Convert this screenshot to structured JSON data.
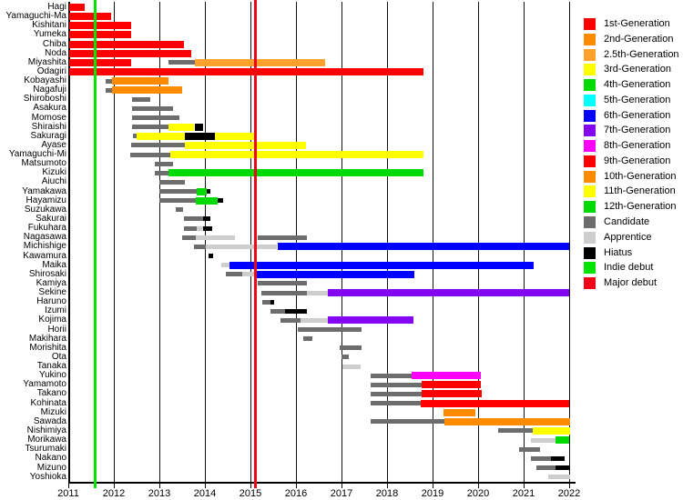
{
  "chart_data": {
    "type": "bar",
    "variant": "horizontal-timeline-gantt",
    "title": "",
    "x_axis": {
      "ticks": [
        2011,
        2012,
        2013,
        2014,
        2015,
        2016,
        2017,
        2018,
        2019,
        2020,
        2021,
        2022
      ],
      "range": [
        2011,
        2022.1
      ],
      "grid": true
    },
    "events": [
      {
        "name": "Indie debut",
        "year": 2011.59,
        "color": "indie"
      },
      {
        "name": "Major debut",
        "year": 2015.11,
        "color": "major"
      }
    ],
    "colors": {
      "1st": "#fc0000",
      "2nd": "#ff8b00",
      "2.5th": "#ffa12b",
      "3rd": "#ffff00",
      "4th": "#00da00",
      "5th": "#00ffff",
      "6th": "#0000ff",
      "7th": "#8405f0",
      "8th": "#ff00ff",
      "9th": "#fc0000",
      "10th": "#ff8b00",
      "11th": "#ffff00",
      "12th": "#00da00",
      "candidate": "#6d6d6d",
      "apprentice": "#cecece",
      "hiatus": "#000000",
      "indie": "#00e400",
      "major": "#f00418"
    },
    "legend": [
      {
        "label": "1st-Generation",
        "color": "1st"
      },
      {
        "label": "2nd-Generation",
        "color": "2nd"
      },
      {
        "label": "2.5th-Generation",
        "color": "2.5th"
      },
      {
        "label": "3rd-Generation",
        "color": "3rd"
      },
      {
        "label": "4th-Generation",
        "color": "4th"
      },
      {
        "label": "5th-Generation",
        "color": "5th"
      },
      {
        "label": "6th-Generation",
        "color": "6th"
      },
      {
        "label": "7th-Generation",
        "color": "7th"
      },
      {
        "label": "8th-Generation",
        "color": "8th"
      },
      {
        "label": "9th-Generation",
        "color": "9th"
      },
      {
        "label": "10th-Generation",
        "color": "10th"
      },
      {
        "label": "11th-Generation",
        "color": "11th"
      },
      {
        "label": "12th-Generation",
        "color": "12th"
      },
      {
        "label": "Candidate",
        "color": "candidate"
      },
      {
        "label": "Apprentice",
        "color": "apprentice"
      },
      {
        "label": "Hiatus",
        "color": "hiatus"
      },
      {
        "label": "Indie debut",
        "color": "indie"
      },
      {
        "label": "Major debut",
        "color": "major"
      }
    ],
    "members": [
      {
        "name": "Hagi",
        "segments": [
          [
            "1st",
            2011.02,
            2011.37
          ]
        ]
      },
      {
        "name": "Yamaguchi-Ma",
        "segments": [
          [
            "1st",
            2011.02,
            2011.93
          ]
        ]
      },
      {
        "name": "Kishitani",
        "segments": [
          [
            "1st",
            2011.02,
            2012.38
          ]
        ]
      },
      {
        "name": "Yumeka",
        "segments": [
          [
            "1st",
            2011.02,
            2012.38
          ]
        ]
      },
      {
        "name": "Chiba",
        "segments": [
          [
            "1st",
            2011.02,
            2013.55
          ]
        ]
      },
      {
        "name": "Noda",
        "segments": [
          [
            "1st",
            2011.02,
            2013.7
          ]
        ]
      },
      {
        "name": "Miyashita",
        "segments": [
          [
            "1st",
            2011.02,
            2012.38
          ],
          [
            "candidate",
            2013.2,
            2013.78
          ],
          [
            "2.5th",
            2013.78,
            2016.64
          ]
        ]
      },
      {
        "name": "Odagiri",
        "segments": [
          [
            "1st",
            2011.02,
            2018.8
          ]
        ]
      },
      {
        "name": "Kobayashi",
        "segments": [
          [
            "candidate",
            2011.82,
            2011.96
          ],
          [
            "2nd",
            2011.96,
            2013.2
          ]
        ]
      },
      {
        "name": "Nagafuji",
        "segments": [
          [
            "candidate",
            2011.82,
            2011.96
          ],
          [
            "2nd",
            2011.96,
            2013.5
          ]
        ]
      },
      {
        "name": "Shiroboshi",
        "segments": [
          [
            "candidate",
            2012.4,
            2012.8
          ]
        ]
      },
      {
        "name": "Asakura",
        "segments": [
          [
            "candidate",
            2012.4,
            2013.3
          ]
        ]
      },
      {
        "name": "Momose",
        "segments": [
          [
            "candidate",
            2012.4,
            2013.44
          ]
        ]
      },
      {
        "name": "Shiraishi",
        "segments": [
          [
            "candidate",
            2012.4,
            2013.2
          ],
          [
            "3rd",
            2013.2,
            2013.76
          ],
          [
            "hiatus",
            2013.79,
            2013.95,
            "thick"
          ]
        ]
      },
      {
        "name": "Sakuragi",
        "segments": [
          [
            "candidate",
            2012.42,
            2012.5
          ],
          [
            "3rd",
            2012.5,
            2013.56
          ],
          [
            "hiatus",
            2013.56,
            2014.22,
            "thick"
          ],
          [
            "3rd",
            2014.22,
            2015.1
          ]
        ]
      },
      {
        "name": "Ayase",
        "segments": [
          [
            "candidate",
            2012.38,
            2013.56
          ],
          [
            "3rd",
            2013.56,
            2016.22
          ]
        ]
      },
      {
        "name": "Yamaguchi-Mi",
        "segments": [
          [
            "candidate",
            2012.36,
            2013.24
          ],
          [
            "3rd",
            2013.24,
            2018.8
          ]
        ]
      },
      {
        "name": "Matsumoto",
        "segments": [
          [
            "candidate",
            2012.9,
            2013.3
          ]
        ]
      },
      {
        "name": "Kizuki",
        "segments": [
          [
            "candidate",
            2012.9,
            2013.2
          ],
          [
            "4th",
            2013.2,
            2018.8
          ]
        ]
      },
      {
        "name": "Aiuchi",
        "segments": [
          [
            "candidate",
            2013.0,
            2013.56
          ]
        ]
      },
      {
        "name": "Yamakawa",
        "segments": [
          [
            "candidate",
            2013.0,
            2013.82
          ],
          [
            "4th",
            2013.82,
            2014.04
          ],
          [
            "hiatus",
            2014.04,
            2014.12
          ]
        ]
      },
      {
        "name": "Hayamizu",
        "segments": [
          [
            "candidate",
            2013.0,
            2013.8
          ],
          [
            "4th",
            2013.8,
            2014.28
          ],
          [
            "hiatus",
            2014.28,
            2014.4
          ]
        ]
      },
      {
        "name": "Suzukawa",
        "segments": [
          [
            "candidate",
            2013.36,
            2013.52
          ]
        ]
      },
      {
        "name": "Sakurai",
        "segments": [
          [
            "candidate",
            2013.55,
            2013.95
          ],
          [
            "hiatus",
            2013.95,
            2014.12
          ]
        ]
      },
      {
        "name": "Fukuhara",
        "segments": [
          [
            "candidate",
            2013.54,
            2013.82
          ],
          [
            "apprentice",
            2013.82,
            2013.96
          ],
          [
            "hiatus",
            2013.96,
            2014.16
          ]
        ]
      },
      {
        "name": "Nagasawa",
        "segments": [
          [
            "candidate",
            2013.5,
            2013.8
          ],
          [
            "apprentice",
            2013.8,
            2014.66
          ],
          [
            "candidate",
            2015.16,
            2016.24
          ]
        ]
      },
      {
        "name": "Michishige",
        "segments": [
          [
            "candidate",
            2013.76,
            2014.02
          ],
          [
            "apprentice",
            2014.02,
            2015.58
          ],
          [
            "6th",
            2015.6,
            2022.0
          ]
        ]
      },
      {
        "name": "Kawamura",
        "segments": [
          [
            "hiatus",
            2014.08,
            2014.17
          ]
        ]
      },
      {
        "name": "Maika",
        "segments": [
          [
            "apprentice",
            2014.36,
            2014.54
          ],
          [
            "6th",
            2014.54,
            2021.22
          ]
        ]
      },
      {
        "name": "Shirosaki",
        "segments": [
          [
            "candidate",
            2014.46,
            2014.82
          ],
          [
            "apprentice",
            2014.82,
            2015.13
          ],
          [
            "6th",
            2015.14,
            2018.6
          ]
        ]
      },
      {
        "name": "Kamiya",
        "segments": [
          [
            "candidate",
            2015.16,
            2016.24
          ]
        ]
      },
      {
        "name": "Sekine",
        "segments": [
          [
            "candidate",
            2015.24,
            2016.24
          ],
          [
            "apprentice",
            2016.24,
            2016.7
          ],
          [
            "7th",
            2016.7,
            2022.0
          ]
        ]
      },
      {
        "name": "Haruno",
        "segments": [
          [
            "candidate",
            2015.26,
            2015.44
          ],
          [
            "hiatus",
            2015.44,
            2015.53
          ]
        ]
      },
      {
        "name": "Izumi",
        "segments": [
          [
            "candidate",
            2015.44,
            2015.76
          ],
          [
            "hiatus",
            2015.76,
            2016.24
          ]
        ]
      },
      {
        "name": "Kojima",
        "segments": [
          [
            "candidate",
            2015.66,
            2016.1
          ],
          [
            "apprentice",
            2016.1,
            2016.7
          ],
          [
            "7th",
            2016.7,
            2018.58
          ]
        ]
      },
      {
        "name": "Horii",
        "segments": [
          [
            "candidate",
            2016.04,
            2017.44
          ]
        ]
      },
      {
        "name": "Makihara",
        "segments": [
          [
            "candidate",
            2016.16,
            2016.36
          ]
        ]
      },
      {
        "name": "Morishita",
        "segments": [
          [
            "candidate",
            2016.96,
            2017.44
          ]
        ]
      },
      {
        "name": "Ota",
        "segments": [
          [
            "candidate",
            2017.0,
            2017.16
          ]
        ]
      },
      {
        "name": "Tanaka",
        "segments": [
          [
            "apprentice",
            2017.02,
            2017.42
          ]
        ]
      },
      {
        "name": "Yukino",
        "segments": [
          [
            "candidate",
            2017.64,
            2018.54
          ],
          [
            "8th",
            2018.54,
            2020.06
          ]
        ]
      },
      {
        "name": "Yamamoto",
        "segments": [
          [
            "candidate",
            2017.64,
            2018.76
          ],
          [
            "9th",
            2018.76,
            2020.06
          ]
        ]
      },
      {
        "name": "Takano",
        "segments": [
          [
            "candidate",
            2017.64,
            2018.76
          ],
          [
            "9th",
            2018.76,
            2020.08
          ]
        ]
      },
      {
        "name": "Kohinata",
        "segments": [
          [
            "candidate",
            2017.64,
            2018.74
          ],
          [
            "9th",
            2018.74,
            2022.0
          ]
        ]
      },
      {
        "name": "Mizuki",
        "segments": [
          [
            "10th",
            2019.24,
            2019.94
          ]
        ]
      },
      {
        "name": "Sawada",
        "segments": [
          [
            "candidate",
            2017.64,
            2019.26
          ],
          [
            "10th",
            2019.26,
            2022.02
          ]
        ]
      },
      {
        "name": "Nishimiya",
        "segments": [
          [
            "candidate",
            2020.44,
            2021.2
          ],
          [
            "11th",
            2021.2,
            2022.02
          ]
        ]
      },
      {
        "name": "Morikawa",
        "segments": [
          [
            "apprentice",
            2021.16,
            2021.7
          ],
          [
            "12th",
            2021.7,
            2022.0
          ]
        ]
      },
      {
        "name": "Tsurumaki",
        "segments": [
          [
            "candidate",
            2020.9,
            2021.36
          ]
        ]
      },
      {
        "name": "Nakano",
        "segments": [
          [
            "candidate",
            2021.16,
            2021.6
          ],
          [
            "hiatus",
            2021.6,
            2021.9
          ]
        ]
      },
      {
        "name": "Mizuno",
        "segments": [
          [
            "candidate",
            2021.28,
            2021.7
          ],
          [
            "hiatus",
            2021.7,
            2022.0
          ]
        ]
      },
      {
        "name": "Yoshioka",
        "segments": [
          [
            "apprentice",
            2021.54,
            2022.02
          ]
        ]
      }
    ]
  }
}
